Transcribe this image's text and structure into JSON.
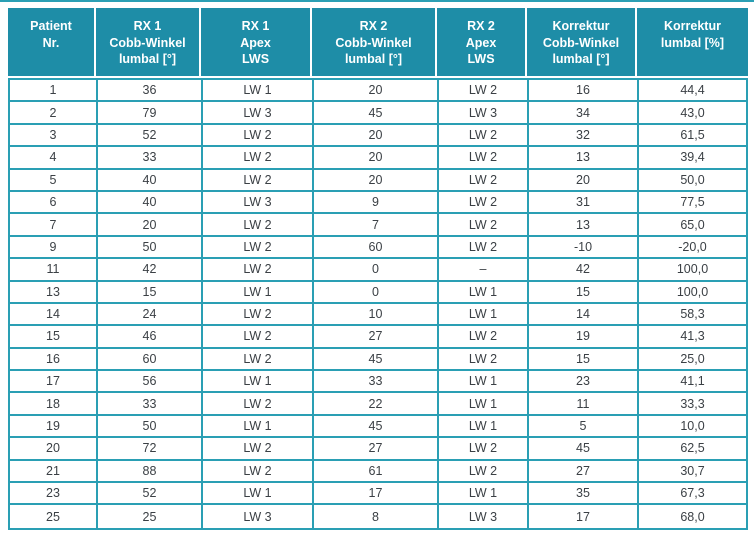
{
  "style": {
    "header_bg": "#1e8da7",
    "grid_border": "#2a9fb4",
    "header_text": "#ffffff",
    "body_text": "#3b4045",
    "page_bg": "#ffffff"
  },
  "chart_data": {
    "type": "table",
    "title": "",
    "columns": [
      "Patient\nNr.",
      "RX 1\nCobb-Winkel\nlumbal [°]",
      "RX 1\nApex\nLWS",
      "RX 2\nCobb-Winkel\nlumbal [°]",
      "RX 2\nApex\nLWS",
      "Korrektur\nCobb-Winkel\nlumbal [°]",
      "Korrektur\nlumbal [%]"
    ],
    "rows": [
      [
        "1",
        "36",
        "LW 1",
        "20",
        "LW 2",
        "16",
        "44,4"
      ],
      [
        "2",
        "79",
        "LW 3",
        "45",
        "LW 3",
        "34",
        "43,0"
      ],
      [
        "3",
        "52",
        "LW 2",
        "20",
        "LW 2",
        "32",
        "61,5"
      ],
      [
        "4",
        "33",
        "LW 2",
        "20",
        "LW 2",
        "13",
        "39,4"
      ],
      [
        "5",
        "40",
        "LW 2",
        "20",
        "LW 2",
        "20",
        "50,0"
      ],
      [
        "6",
        "40",
        "LW 3",
        "9",
        "LW 2",
        "31",
        "77,5"
      ],
      [
        "7",
        "20",
        "LW 2",
        "7",
        "LW 2",
        "13",
        "65,0"
      ],
      [
        "9",
        "50",
        "LW 2",
        "60",
        "LW 2",
        "-10",
        "-20,0"
      ],
      [
        "11",
        "42",
        "LW 2",
        "0",
        "–",
        "42",
        "100,0"
      ],
      [
        "13",
        "15",
        "LW 1",
        "0",
        "LW 1",
        "15",
        "100,0"
      ],
      [
        "14",
        "24",
        "LW 2",
        "10",
        "LW 1",
        "14",
        "58,3"
      ],
      [
        "15",
        "46",
        "LW 2",
        "27",
        "LW 2",
        "19",
        "41,3"
      ],
      [
        "16",
        "60",
        "LW 2",
        "45",
        "LW 2",
        "15",
        "25,0"
      ],
      [
        "17",
        "56",
        "LW 1",
        "33",
        "LW 1",
        "23",
        "41,1"
      ],
      [
        "18",
        "33",
        "LW 2",
        "22",
        "LW 1",
        "11",
        "33,3"
      ],
      [
        "19",
        "50",
        "LW 1",
        "45",
        "LW 1",
        "5",
        "10,0"
      ],
      [
        "20",
        "72",
        "LW 2",
        "27",
        "LW 2",
        "45",
        "62,5"
      ],
      [
        "21",
        "88",
        "LW 2",
        "61",
        "LW 2",
        "27",
        "30,7"
      ],
      [
        "23",
        "52",
        "LW 1",
        "17",
        "LW 1",
        "35",
        "67,3"
      ],
      [
        "25",
        "25",
        "LW 3",
        "8",
        "LW 3",
        "17",
        "68,0"
      ]
    ]
  }
}
